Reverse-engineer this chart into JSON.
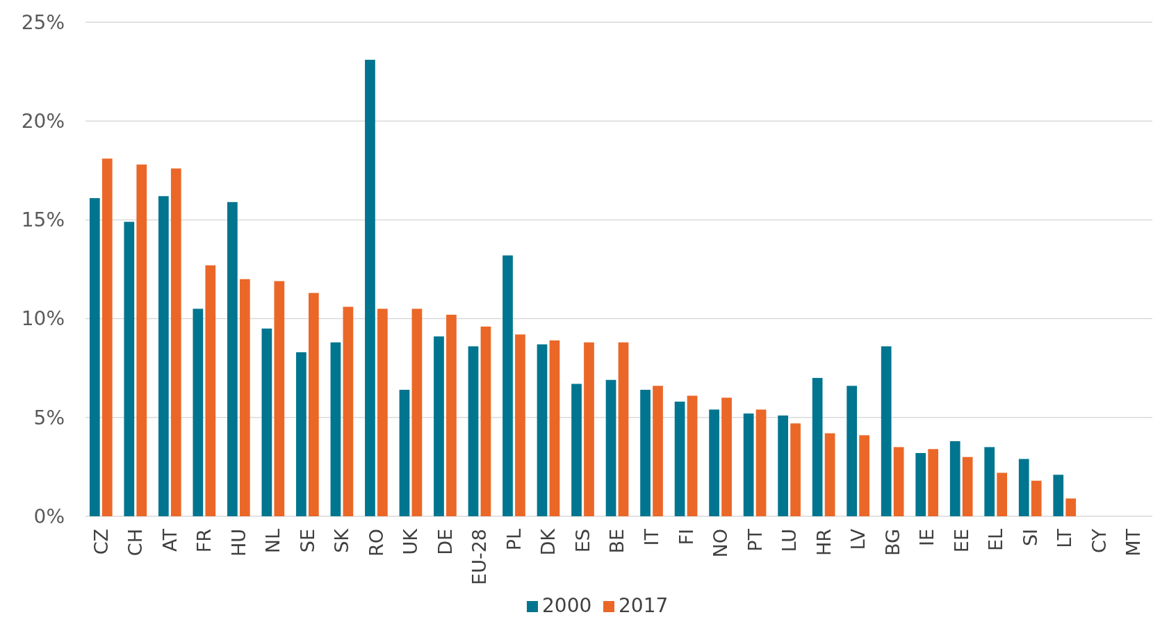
{
  "chart_data": {
    "type": "bar",
    "categories": [
      "CZ",
      "CH",
      "AT",
      "FR",
      "HU",
      "NL",
      "SE",
      "SK",
      "RO",
      "UK",
      "DE",
      "EU-28",
      "PL",
      "DK",
      "ES",
      "BE",
      "IT",
      "FI",
      "NO",
      "PT",
      "LU",
      "HR",
      "LV",
      "BG",
      "IE",
      "EE",
      "EL",
      "SI",
      "LT",
      "CY",
      "MT"
    ],
    "series": [
      {
        "name": "2000",
        "color": "#00758f",
        "values": [
          16.1,
          14.9,
          16.2,
          10.5,
          15.9,
          9.5,
          8.3,
          8.8,
          23.1,
          6.4,
          9.1,
          8.6,
          13.2,
          8.7,
          6.7,
          6.9,
          6.4,
          5.8,
          5.4,
          5.2,
          5.1,
          7.0,
          6.6,
          8.6,
          3.2,
          3.8,
          3.5,
          2.9,
          2.1,
          null,
          null
        ]
      },
      {
        "name": "2017",
        "color": "#eb6728",
        "values": [
          18.1,
          17.8,
          17.6,
          12.7,
          12.0,
          11.9,
          11.3,
          10.6,
          10.5,
          10.5,
          10.2,
          9.6,
          9.2,
          8.9,
          8.8,
          8.8,
          6.6,
          6.1,
          6.0,
          5.4,
          4.7,
          4.2,
          4.1,
          3.5,
          3.4,
          3.0,
          2.2,
          1.8,
          0.9,
          null,
          null
        ]
      }
    ],
    "ylim": [
      0,
      25
    ],
    "yticks": [
      {
        "value": 0,
        "label": "0%"
      },
      {
        "value": 5,
        "label": "5%"
      },
      {
        "value": 10,
        "label": "10%"
      },
      {
        "value": 15,
        "label": "15%"
      },
      {
        "value": 20,
        "label": "20%"
      },
      {
        "value": 25,
        "label": "25%"
      }
    ],
    "grid": "y",
    "legend": "bottom"
  }
}
